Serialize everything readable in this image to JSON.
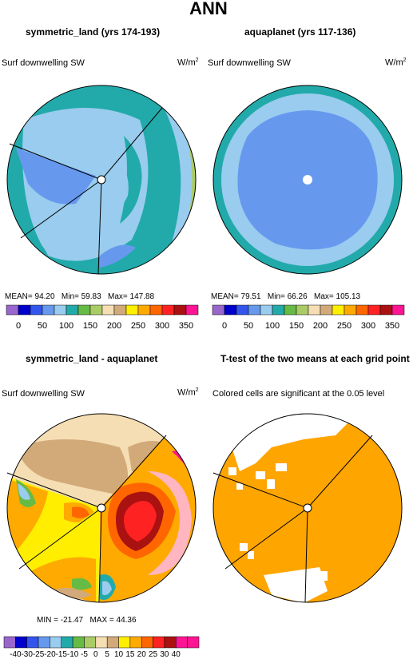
{
  "title": "ANN",
  "panels": [
    {
      "title": "symmetric_land (yrs 174-193)",
      "variable": "Surf downwelling SW",
      "units_base": "W/m",
      "units_exp": "2",
      "stats": {
        "mean_label": "MEAN=",
        "mean": "94.20",
        "min_label": "Min=",
        "min": "59.83",
        "max_label": "Max=",
        "max": "147.88"
      }
    },
    {
      "title": "aquaplanet (yrs 117-136)",
      "variable": "Surf downwelling SW",
      "units_base": "W/m",
      "units_exp": "2",
      "stats": {
        "mean_label": "MEAN=",
        "mean": "79.51",
        "min_label": "Min=",
        "min": "66.26",
        "max_label": "Max=",
        "max": "105.13"
      }
    },
    {
      "title": "symmetric_land - aquaplanet",
      "variable": "Surf downwelling SW",
      "units_base": "W/m",
      "units_exp": "2",
      "stats": {
        "min_label": "MIN =",
        "min": "-21.47",
        "max_label": "MAX =",
        "max": "44.36"
      }
    },
    {
      "title": "T-test of the two means at each grid point",
      "subtitle": "Colored cells are significant at the 0.05 level"
    }
  ],
  "chart_data": [
    {
      "type": "heatmap",
      "title": "symmetric_land (yrs 174-193)",
      "projection": "polar stereographic",
      "colorbar": {
        "colors": [
          "#9966cc",
          "#0000cc",
          "#3355ee",
          "#6699ee",
          "#99ccee",
          "#22aaaa",
          "#66bb44",
          "#aacc66",
          "#f5deb3",
          "#d2aa7a",
          "#ffee00",
          "#ffaa00",
          "#ff6600",
          "#ff2222",
          "#aa1111",
          "#ff1493"
        ],
        "labels": [
          "0",
          "50",
          "100",
          "150",
          "200",
          "250",
          "300",
          "350"
        ]
      },
      "mean": 94.2,
      "min": 59.83,
      "max": 147.88
    },
    {
      "type": "heatmap",
      "title": "aquaplanet (yrs 117-136)",
      "projection": "polar stereographic",
      "colorbar": {
        "colors": [
          "#9966cc",
          "#0000cc",
          "#3355ee",
          "#6699ee",
          "#99ccee",
          "#22aaaa",
          "#66bb44",
          "#aacc66",
          "#f5deb3",
          "#d2aa7a",
          "#ffee00",
          "#ffaa00",
          "#ff6600",
          "#ff2222",
          "#aa1111",
          "#ff1493"
        ],
        "labels": [
          "0",
          "50",
          "100",
          "150",
          "200",
          "250",
          "300",
          "350"
        ]
      },
      "mean": 79.51,
      "min": 66.26,
      "max": 105.13
    },
    {
      "type": "heatmap",
      "title": "symmetric_land - aquaplanet",
      "projection": "polar stereographic",
      "colorbar": {
        "colors": [
          "#9966cc",
          "#0000cc",
          "#3355ee",
          "#6699ee",
          "#99ccee",
          "#22aaaa",
          "#66bb44",
          "#aacc66",
          "#f5deb3",
          "#d2aa7a",
          "#ffee00",
          "#ffaa00",
          "#ff6600",
          "#ff2222",
          "#aa1111",
          "#ff1493",
          "#ff1493"
        ],
        "labels": [
          "-40",
          "-30",
          "-25",
          "-20",
          "-15",
          "-10",
          "-5",
          "0",
          "5",
          "10",
          "15",
          "20",
          "25",
          "30",
          "40"
        ]
      },
      "min": -21.47,
      "max": 44.36
    },
    {
      "type": "heatmap",
      "title": "T-test of the two means at each grid point",
      "projection": "polar stereographic",
      "significant_color": "#ffa500"
    }
  ]
}
